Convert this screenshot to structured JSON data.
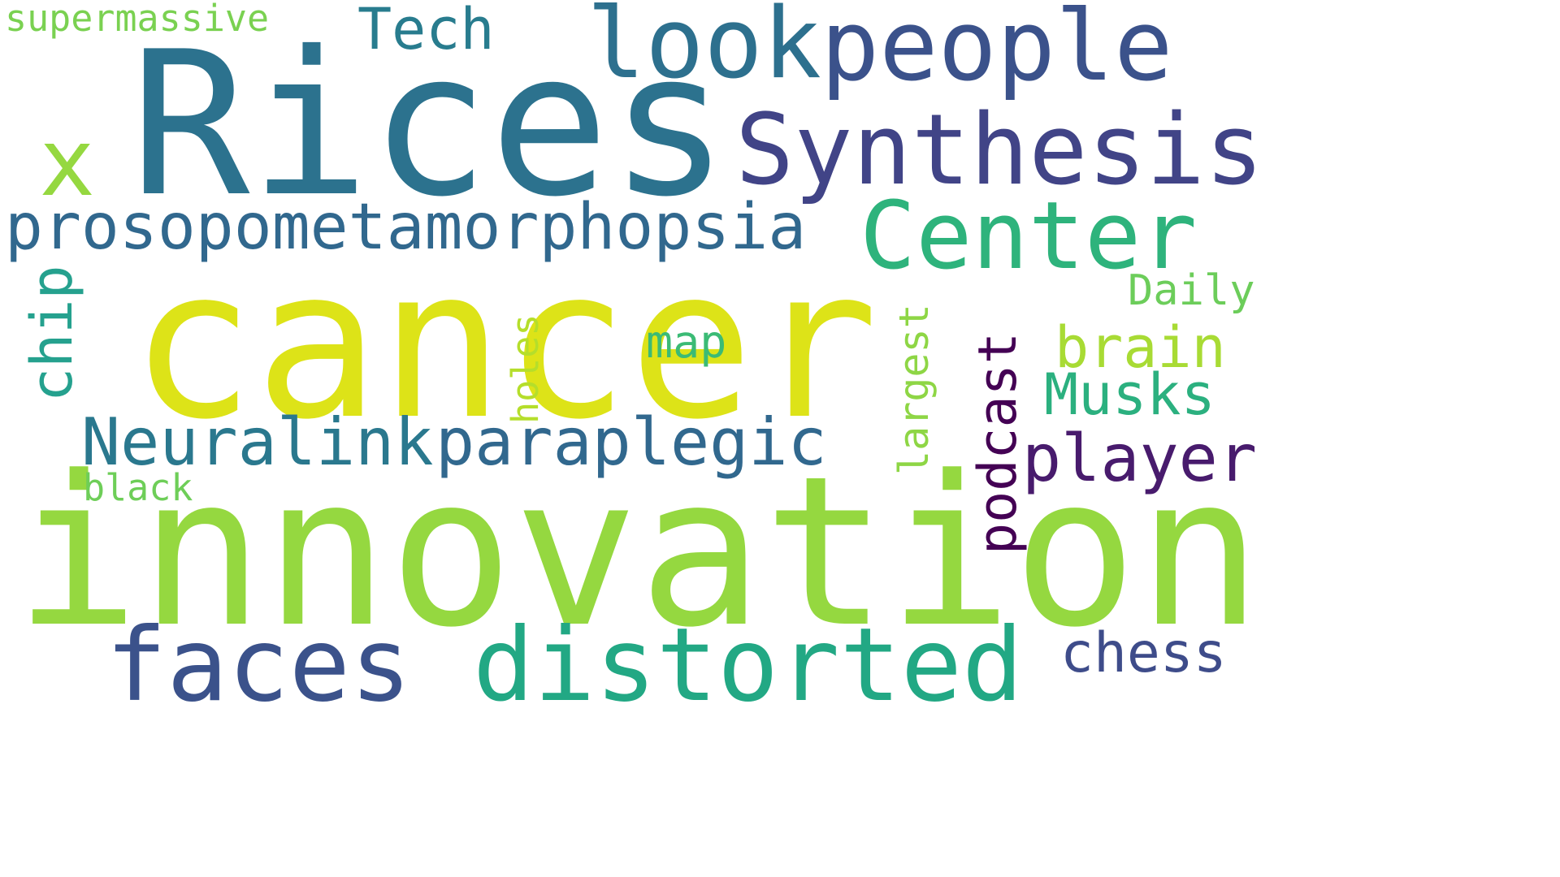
{
  "words": [
    {
      "id": "cancer",
      "text": "cancer",
      "color": "#dde318"
    },
    {
      "id": "innovation",
      "text": "innovation",
      "color": "#95d840"
    },
    {
      "id": "rices",
      "text": "Rices",
      "color": "#2c728e"
    },
    {
      "id": "look",
      "text": "look",
      "color": "#2d708e"
    },
    {
      "id": "people",
      "text": "people",
      "color": "#3b528b"
    },
    {
      "id": "synthesis",
      "text": "Synthesis",
      "color": "#414487"
    },
    {
      "id": "center",
      "text": "Center",
      "color": "#2eb37c"
    },
    {
      "id": "prosopometamorphopsia",
      "text": "prosopometamorphopsia",
      "color": "#31688e"
    },
    {
      "id": "x",
      "text": "x",
      "color": "#95d840"
    },
    {
      "id": "tech",
      "text": "Tech",
      "color": "#287c8e"
    },
    {
      "id": "supermassive",
      "text": "supermassive",
      "color": "#7ad151"
    },
    {
      "id": "faces",
      "text": "faces",
      "color": "#3b528b"
    },
    {
      "id": "distorted",
      "text": "distorted",
      "color": "#22a884"
    },
    {
      "id": "neuralink",
      "text": "Neuralink",
      "color": "#2a788e"
    },
    {
      "id": "paraplegic",
      "text": "paraplegic",
      "color": "#31688e"
    },
    {
      "id": "player",
      "text": "player",
      "color": "#481b6d"
    },
    {
      "id": "brain",
      "text": "brain",
      "color": "#a8db34"
    },
    {
      "id": "musks",
      "text": "Musks",
      "color": "#2bb07f"
    },
    {
      "id": "daily",
      "text": "Daily",
      "color": "#6ccd5a"
    },
    {
      "id": "chess",
      "text": "chess",
      "color": "#3e4c8a"
    },
    {
      "id": "map",
      "text": "map",
      "color": "#3bbb75"
    },
    {
      "id": "chip",
      "text": "chip",
      "color": "#25a18e"
    },
    {
      "id": "holes",
      "text": "holes",
      "color": "#b5de2b"
    },
    {
      "id": "largest",
      "text": "largest",
      "color": "#8ed645"
    },
    {
      "id": "podcast",
      "text": "podcast",
      "color": "#440154"
    },
    {
      "id": "black",
      "text": "black",
      "color": "#6ece58"
    }
  ]
}
